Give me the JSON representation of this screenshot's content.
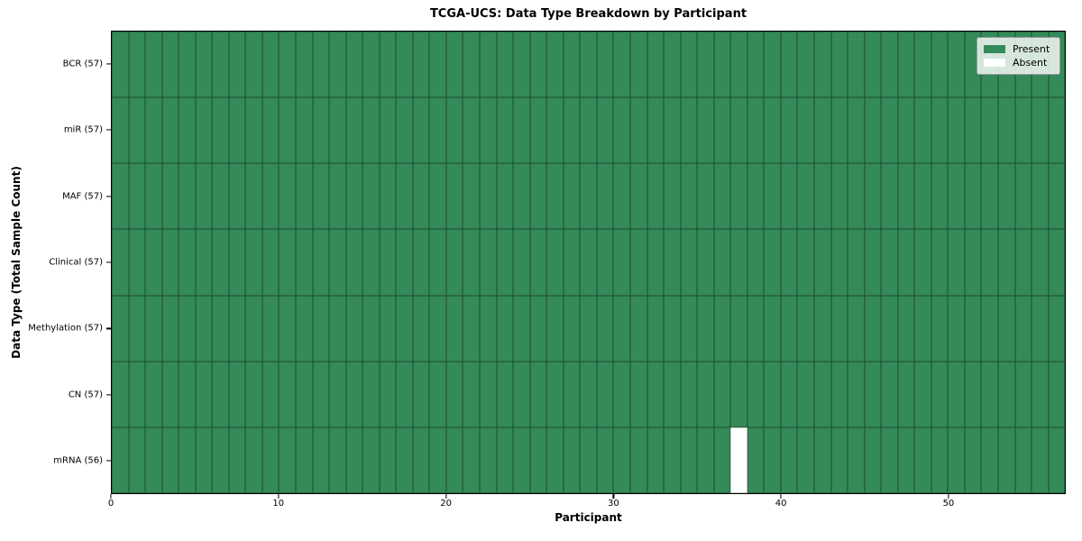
{
  "chart_data": {
    "type": "heatmap",
    "title": "TCGA-UCS: Data Type Breakdown by Participant",
    "xlabel": "Participant",
    "ylabel": "Data Type (Total Sample Count)",
    "n_participants": 57,
    "xlim": [
      0,
      57
    ],
    "x_ticks": [
      0,
      10,
      20,
      30,
      40,
      50
    ],
    "rows": [
      {
        "data_type": "BCR",
        "label": "BCR (57)",
        "present_count": 57,
        "absent_participants": []
      },
      {
        "data_type": "miR",
        "label": "miR (57)",
        "present_count": 57,
        "absent_participants": []
      },
      {
        "data_type": "MAF",
        "label": "MAF (57)",
        "present_count": 57,
        "absent_participants": []
      },
      {
        "data_type": "Clinical",
        "label": "Clinical (57)",
        "present_count": 57,
        "absent_participants": []
      },
      {
        "data_type": "Methylation",
        "label": "Methylation (57)",
        "present_count": 57,
        "absent_participants": []
      },
      {
        "data_type": "CN",
        "label": "CN (57)",
        "present_count": 57,
        "absent_participants": []
      },
      {
        "data_type": "mRNA",
        "label": "mRNA (56)",
        "present_count": 56,
        "absent_participants": [
          37
        ]
      }
    ],
    "legend": [
      {
        "label": "Present",
        "color": "#348a58"
      },
      {
        "label": "Absent",
        "color": "#ffffff"
      }
    ],
    "colors": {
      "present": "#348a58",
      "absent": "#ffffff",
      "cell_edge": "rgba(0,0,0,0.45)",
      "spine": "#000000"
    },
    "legend_position": "upper right",
    "grid": "cell-edges"
  }
}
